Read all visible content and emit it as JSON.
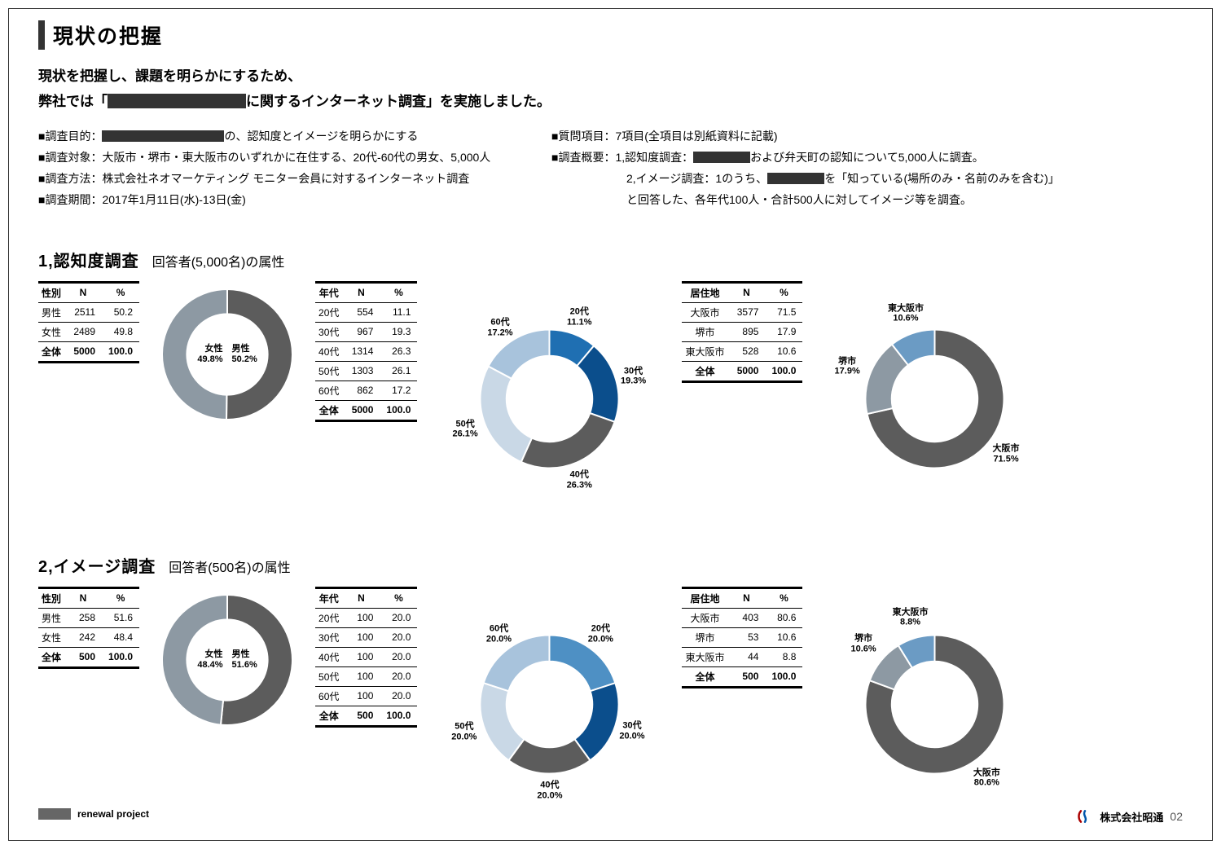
{
  "title": "現状の把握",
  "subtitle_1": "現状を把握し、課題を明らかにするため、",
  "subtitle_2a": "弊社では「",
  "subtitle_2b": "に関するインターネット調査」を実施しました。",
  "subtitle_mask_w": 170,
  "spec_left": [
    {
      "label": "■調査目的：",
      "mask_w": 150,
      "value": "の、認知度とイメージを明らかにする"
    },
    {
      "label": "■調査対象：",
      "value": "大阪市・堺市・東大阪市のいずれかに在住する、20代-60代の男女、5,000人"
    },
    {
      "label": "■調査方法：",
      "value": "株式会社ネオマーケティング モニター会員に対するインターネット調査"
    },
    {
      "label": "■調査期間：",
      "value": "2017年1月11日(水)-13日(金)"
    }
  ],
  "spec_right": [
    {
      "label": "■質問項目：",
      "value": "7項目(全項目は別紙資料に記載)"
    },
    {
      "label": "■調査概要：",
      "value_a": "1,認知度調査：",
      "mask_w": 70,
      "value_b": "および弁天町の認知について5,000人に調査。"
    },
    {
      "indent": true,
      "value_a": "2,イメージ調査：1のうち、",
      "mask_w": 70,
      "value_b": "を「知っている(場所のみ・名前のみを含む)」"
    },
    {
      "indent": true,
      "value": "と回答した、各年代100人・合計500人に対してイメージ等を調査。"
    }
  ],
  "section1": {
    "big": "1,認知度調査",
    "small": "回答者(5,000名)の属性"
  },
  "section2": {
    "big": "2,イメージ調査",
    "small": "回答者(500名)の属性"
  },
  "tbl_gender_head": [
    "性別",
    "N",
    "%"
  ],
  "tbl_age_head": [
    "年代",
    "N",
    "%"
  ],
  "tbl_area_head": [
    "居住地",
    "N",
    "%"
  ],
  "s1": {
    "gender": {
      "rows": [
        [
          "男性",
          "2511",
          "50.2"
        ],
        [
          "女性",
          "2489",
          "49.8"
        ]
      ],
      "total": [
        "全体",
        "5000",
        "100.0"
      ]
    },
    "gender_chart": {
      "slices": [
        {
          "label": "男性",
          "pct": 50.2,
          "color": "#5c5c5c"
        },
        {
          "label": "女性",
          "pct": 49.8,
          "color": "#8d99a3"
        }
      ],
      "center": "女性　男性\n49.8%　50.2%",
      "inner": 0.62,
      "size": 160
    },
    "age": {
      "rows": [
        [
          "20代",
          "554",
          "11.1"
        ],
        [
          "30代",
          "967",
          "19.3"
        ],
        [
          "40代",
          "1314",
          "26.3"
        ],
        [
          "50代",
          "1303",
          "26.1"
        ],
        [
          "60代",
          "862",
          "17.2"
        ]
      ],
      "total": [
        "全体",
        "5000",
        "100.0"
      ]
    },
    "age_chart": {
      "slices": [
        {
          "label": "20代",
          "pct": 11.1,
          "color": "#1f6fb2"
        },
        {
          "label": "30代",
          "pct": 19.3,
          "color": "#0b4e8c"
        },
        {
          "label": "40代",
          "pct": 26.3,
          "color": "#5c5c5c"
        },
        {
          "label": "50代",
          "pct": 26.1,
          "color": "#c9d8e6"
        },
        {
          "label": "60代",
          "pct": 17.2,
          "color": "#a8c3dc"
        }
      ],
      "inner": 0.62,
      "size": 170,
      "labels": [
        {
          "txt": "20代\n11.1%",
          "angle": 20,
          "r": 1.25
        },
        {
          "txt": "30代\n19.3%",
          "angle": 75,
          "r": 1.25
        },
        {
          "txt": "40代\n26.3%",
          "angle": 160,
          "r": 1.25
        },
        {
          "txt": "50代\n26.1%",
          "angle": 250,
          "r": 1.3
        },
        {
          "txt": "60代\n17.2%",
          "angle": 325,
          "r": 1.25
        }
      ]
    },
    "area": {
      "rows": [
        [
          "大阪市",
          "3577",
          "71.5"
        ],
        [
          "堺市",
          "895",
          "17.9"
        ],
        [
          "東大阪市",
          "528",
          "10.6"
        ]
      ],
      "total": [
        "全体",
        "5000",
        "100.0"
      ]
    },
    "area_chart": {
      "slices": [
        {
          "label": "大阪市",
          "pct": 71.5,
          "color": "#5c5c5c"
        },
        {
          "label": "堺市",
          "pct": 17.9,
          "color": "#8d99a3"
        },
        {
          "label": "東大阪市",
          "pct": 10.6,
          "color": "#6b9bc4"
        }
      ],
      "inner": 0.62,
      "size": 170,
      "labels": [
        {
          "txt": "大阪市\n71.5%",
          "angle": 128,
          "r": 1.3
        },
        {
          "txt": "堺市\n17.9%",
          "angle": 290,
          "r": 1.35
        },
        {
          "txt": "東大阪市\n10.6%",
          "angle": 341,
          "r": 1.3
        }
      ]
    }
  },
  "s2": {
    "gender": {
      "rows": [
        [
          "男性",
          "258",
          "51.6"
        ],
        [
          "女性",
          "242",
          "48.4"
        ]
      ],
      "total": [
        "全体",
        "500",
        "100.0"
      ]
    },
    "gender_chart": {
      "slices": [
        {
          "label": "男性",
          "pct": 51.6,
          "color": "#5c5c5c"
        },
        {
          "label": "女性",
          "pct": 48.4,
          "color": "#8d99a3"
        }
      ],
      "center": "女性　男性\n48.4%　51.6%",
      "inner": 0.62,
      "size": 160
    },
    "age": {
      "rows": [
        [
          "20代",
          "100",
          "20.0"
        ],
        [
          "30代",
          "100",
          "20.0"
        ],
        [
          "40代",
          "100",
          "20.0"
        ],
        [
          "50代",
          "100",
          "20.0"
        ],
        [
          "60代",
          "100",
          "20.0"
        ]
      ],
      "total": [
        "全体",
        "500",
        "100.0"
      ]
    },
    "age_chart": {
      "slices": [
        {
          "label": "20代",
          "pct": 20.0,
          "color": "#4e90c4"
        },
        {
          "label": "30代",
          "pct": 20.0,
          "color": "#0b4e8c"
        },
        {
          "label": "40代",
          "pct": 20.0,
          "color": "#5c5c5c"
        },
        {
          "label": "50代",
          "pct": 20.0,
          "color": "#c9d8e6"
        },
        {
          "label": "60代",
          "pct": 20.0,
          "color": "#a8c3dc"
        }
      ],
      "inner": 0.62,
      "size": 170,
      "labels": [
        {
          "txt": "20代\n20.0%",
          "angle": 36,
          "r": 1.25
        },
        {
          "txt": "30代\n20.0%",
          "angle": 108,
          "r": 1.25
        },
        {
          "txt": "40代\n20.0%",
          "angle": 180,
          "r": 1.25
        },
        {
          "txt": "50代\n20.0%",
          "angle": 252,
          "r": 1.3
        },
        {
          "txt": "60代\n20.0%",
          "angle": 324,
          "r": 1.25
        }
      ]
    },
    "area": {
      "rows": [
        [
          "大阪市",
          "403",
          "80.6"
        ],
        [
          "堺市",
          "53",
          "10.6"
        ],
        [
          "東大阪市",
          "44",
          "8.8"
        ]
      ],
      "total": [
        "全体",
        "500",
        "100.0"
      ]
    },
    "area_chart": {
      "slices": [
        {
          "label": "大阪市",
          "pct": 80.6,
          "color": "#5c5c5c"
        },
        {
          "label": "堺市",
          "pct": 10.6,
          "color": "#8d99a3"
        },
        {
          "label": "東大阪市",
          "pct": 8.8,
          "color": "#6b9bc4"
        }
      ],
      "inner": 0.62,
      "size": 170,
      "labels": [
        {
          "txt": "大阪市\n80.6%",
          "angle": 145,
          "r": 1.3
        },
        {
          "txt": "堺市\n10.6%",
          "angle": 310,
          "r": 1.35
        },
        {
          "txt": "東大阪市\n8.8%",
          "angle": 344,
          "r": 1.3
        }
      ]
    }
  },
  "footer": {
    "project": "renewal project",
    "company": "株式会社昭通",
    "page": "02"
  },
  "colors": {
    "text": "#000",
    "mask": "#333",
    "border": "#333",
    "bg": "#ffffff"
  }
}
